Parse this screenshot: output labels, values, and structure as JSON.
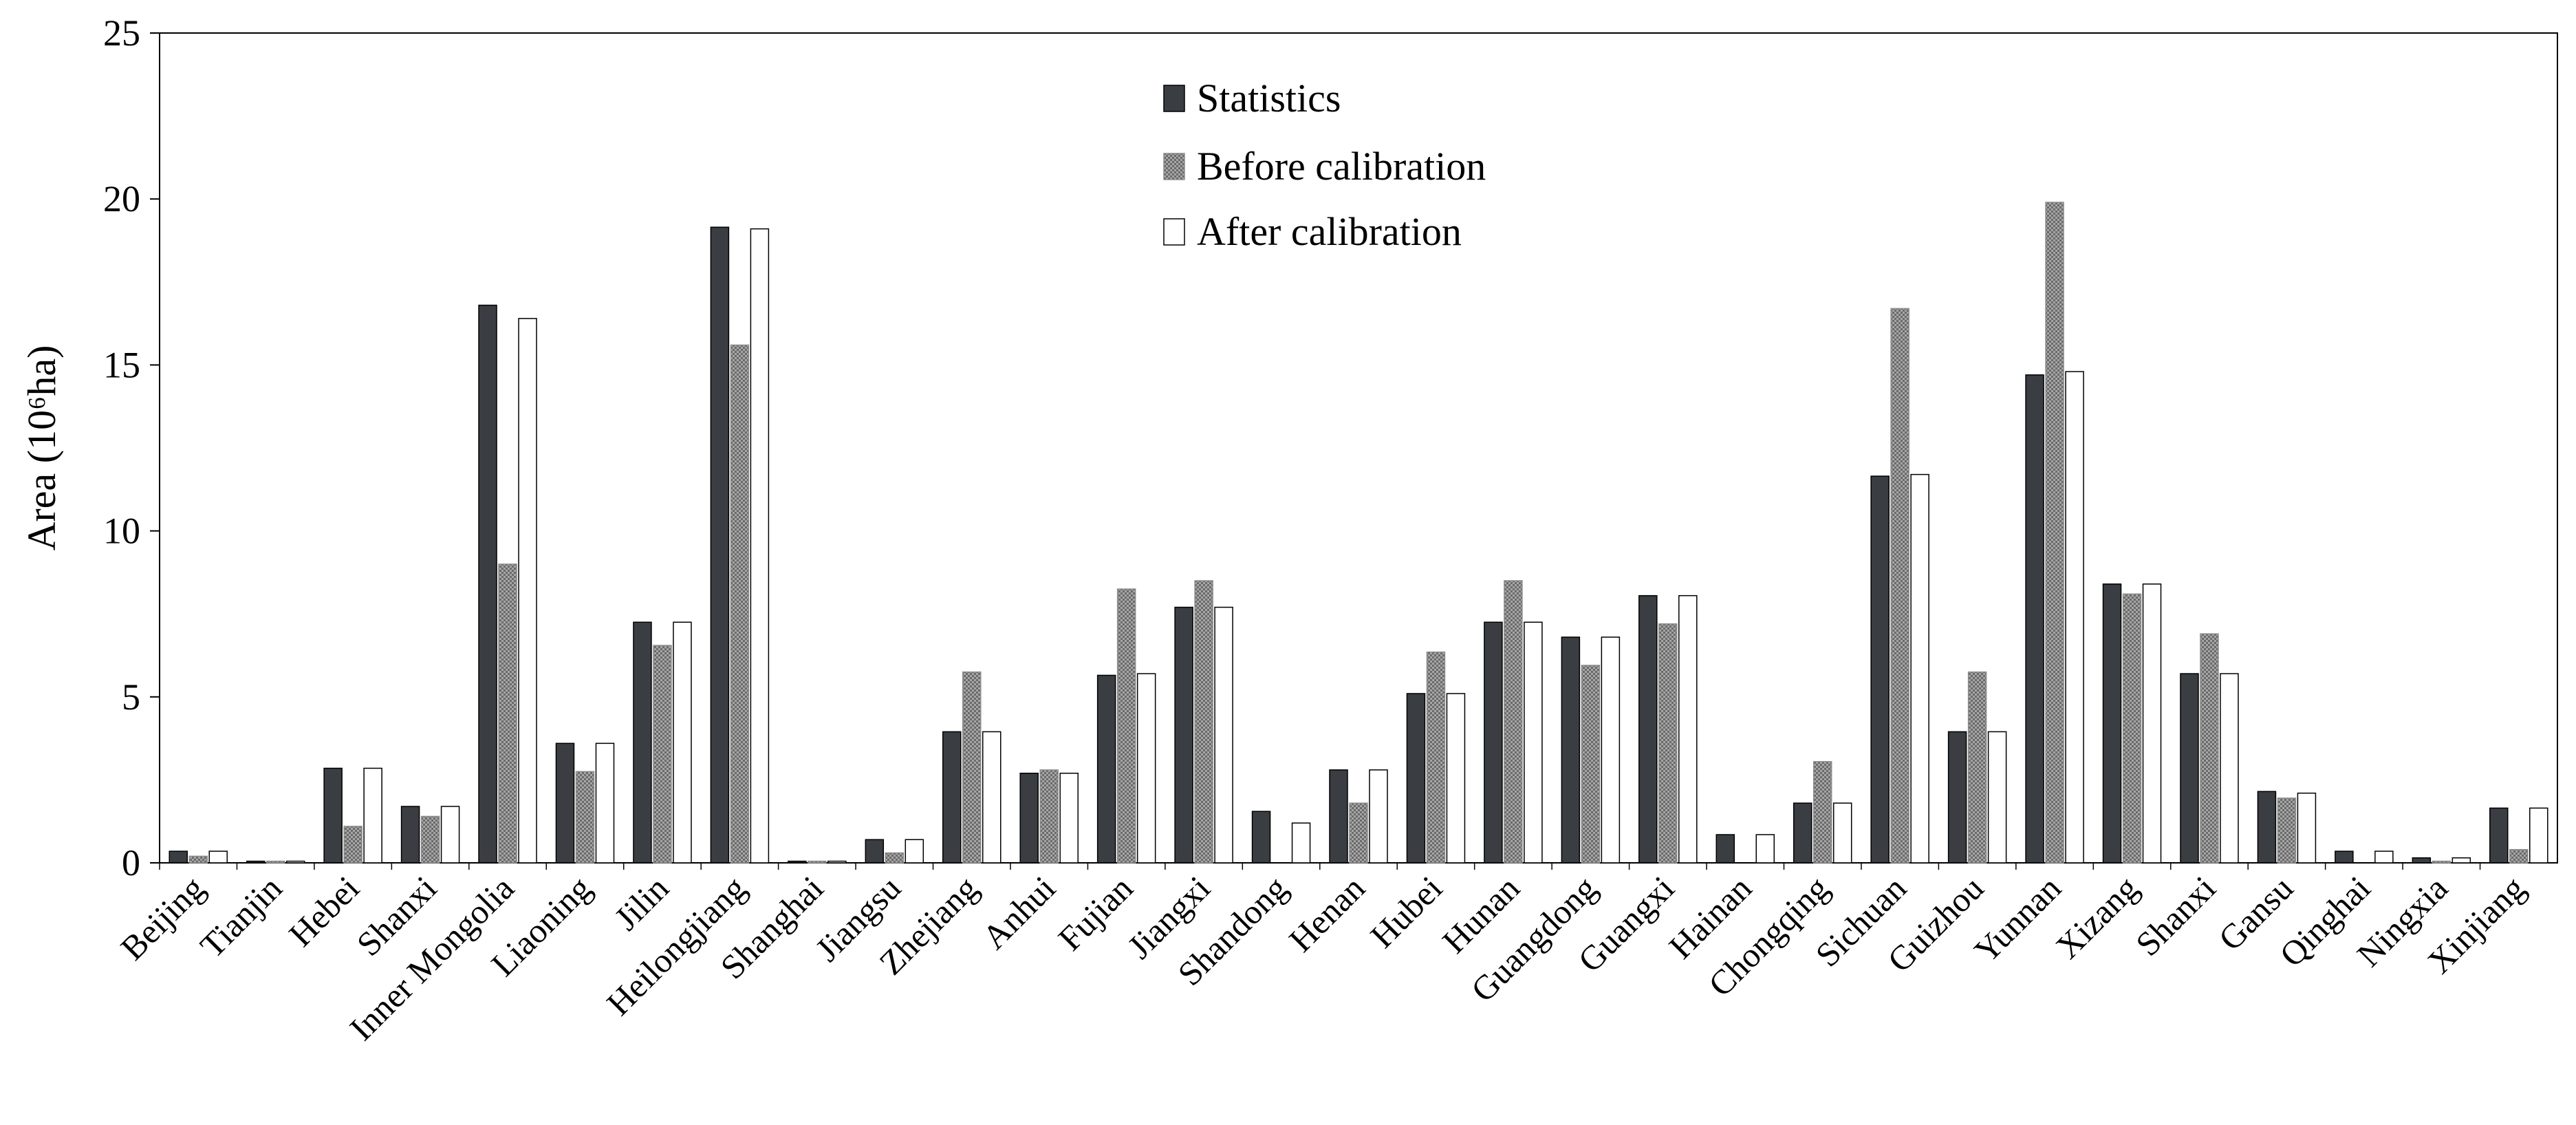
{
  "chart_data": {
    "type": "bar",
    "title": "",
    "xlabel": "",
    "ylabel": "Area (10⁶ha)",
    "ylim": [
      0,
      25
    ],
    "yticks": [
      0,
      5,
      10,
      15,
      20,
      25
    ],
    "grid": false,
    "legend_position": "top-center",
    "categories": [
      "Beijing",
      "Tianjin",
      "Hebei",
      "Shanxi",
      "Inner Mongolia",
      "Liaoning",
      "Jilin",
      "Heilongjiang",
      "Shanghai",
      "Jiangsu",
      "Zhejiang",
      "Anhui",
      "Fujian",
      "Jiangxi",
      "Shandong",
      "Henan",
      "Hubei",
      "Hunan",
      "Guangdong",
      "Guangxi",
      "Hainan",
      "Chongqing",
      "Sichuan",
      "Guizhou",
      "Yunnan",
      "Xizang",
      "Shanxi",
      "Gansu",
      "Qinghai",
      "Ningxia",
      "Xinjiang"
    ],
    "series": [
      {
        "name": "Statistics",
        "style": "solid",
        "color": "#3a3d42",
        "values": [
          0.35,
          0.05,
          2.85,
          1.7,
          16.8,
          3.6,
          7.25,
          19.15,
          0.05,
          0.7,
          3.95,
          2.7,
          5.65,
          7.7,
          1.55,
          2.8,
          5.1,
          7.25,
          6.8,
          8.05,
          0.85,
          1.8,
          11.65,
          3.95,
          14.7,
          8.4,
          5.7,
          2.15,
          0.35,
          0.15,
          1.65
        ]
      },
      {
        "name": "Before calibration",
        "style": "hatched",
        "color": "#8c8c8c",
        "values": [
          0.2,
          0.05,
          1.1,
          1.4,
          9.0,
          2.75,
          6.55,
          15.6,
          0.05,
          0.3,
          5.75,
          2.8,
          8.25,
          8.5,
          0.0,
          1.8,
          6.35,
          8.5,
          5.95,
          7.2,
          0.0,
          3.05,
          16.7,
          5.75,
          19.9,
          8.1,
          6.9,
          1.95,
          0.0,
          0.05,
          0.4
        ]
      },
      {
        "name": "After calibration",
        "style": "open",
        "color": "#ffffff",
        "values": [
          0.35,
          0.05,
          2.85,
          1.7,
          16.4,
          3.6,
          7.25,
          19.1,
          0.05,
          0.7,
          3.95,
          2.7,
          5.7,
          7.7,
          1.2,
          2.8,
          5.1,
          7.25,
          6.8,
          8.05,
          0.85,
          1.8,
          11.7,
          3.95,
          14.8,
          8.4,
          5.7,
          2.1,
          0.35,
          0.15,
          1.65
        ]
      }
    ]
  }
}
